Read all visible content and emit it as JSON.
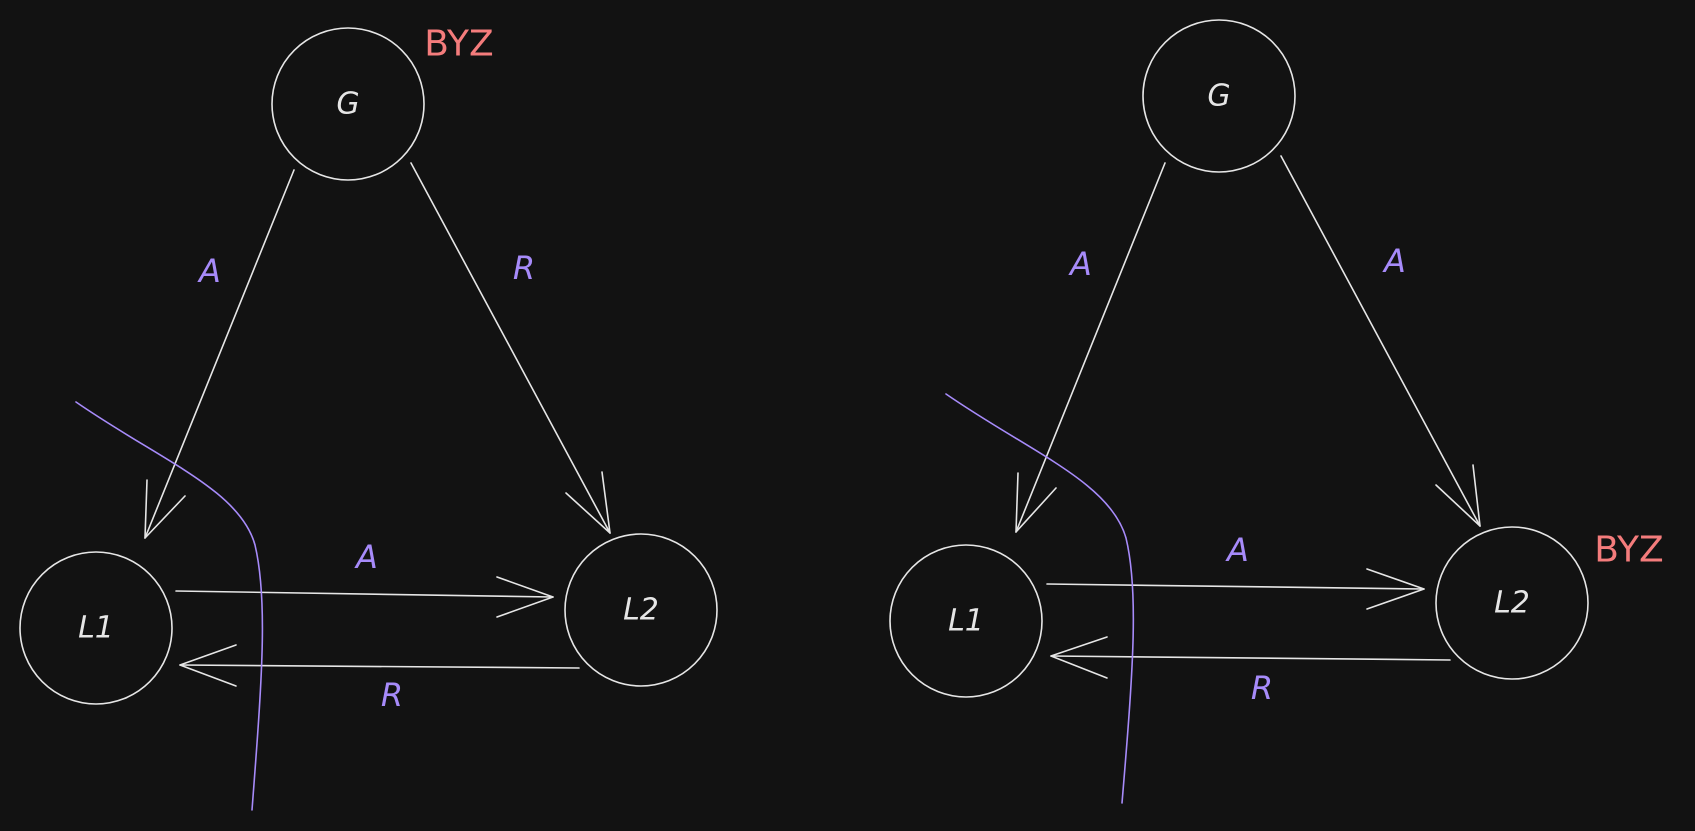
{
  "colors": {
    "background": "#121212",
    "stroke": "#e6e6e6",
    "edge_label": "#a78bfa",
    "byzantine": "#f47c7c"
  },
  "left": {
    "general": "G",
    "l1": "L1",
    "l2": "L2",
    "byz_tag": "BYZ",
    "g_to_l1": "A",
    "g_to_l2": "R",
    "l1_to_l2": "A",
    "l2_to_l1": "R"
  },
  "right": {
    "general": "G",
    "l1": "L1",
    "l2": "L2",
    "byz_tag": "BYZ",
    "g_to_l1": "A",
    "g_to_l2": "A",
    "l1_to_l2": "A",
    "l2_to_l1": "R"
  }
}
